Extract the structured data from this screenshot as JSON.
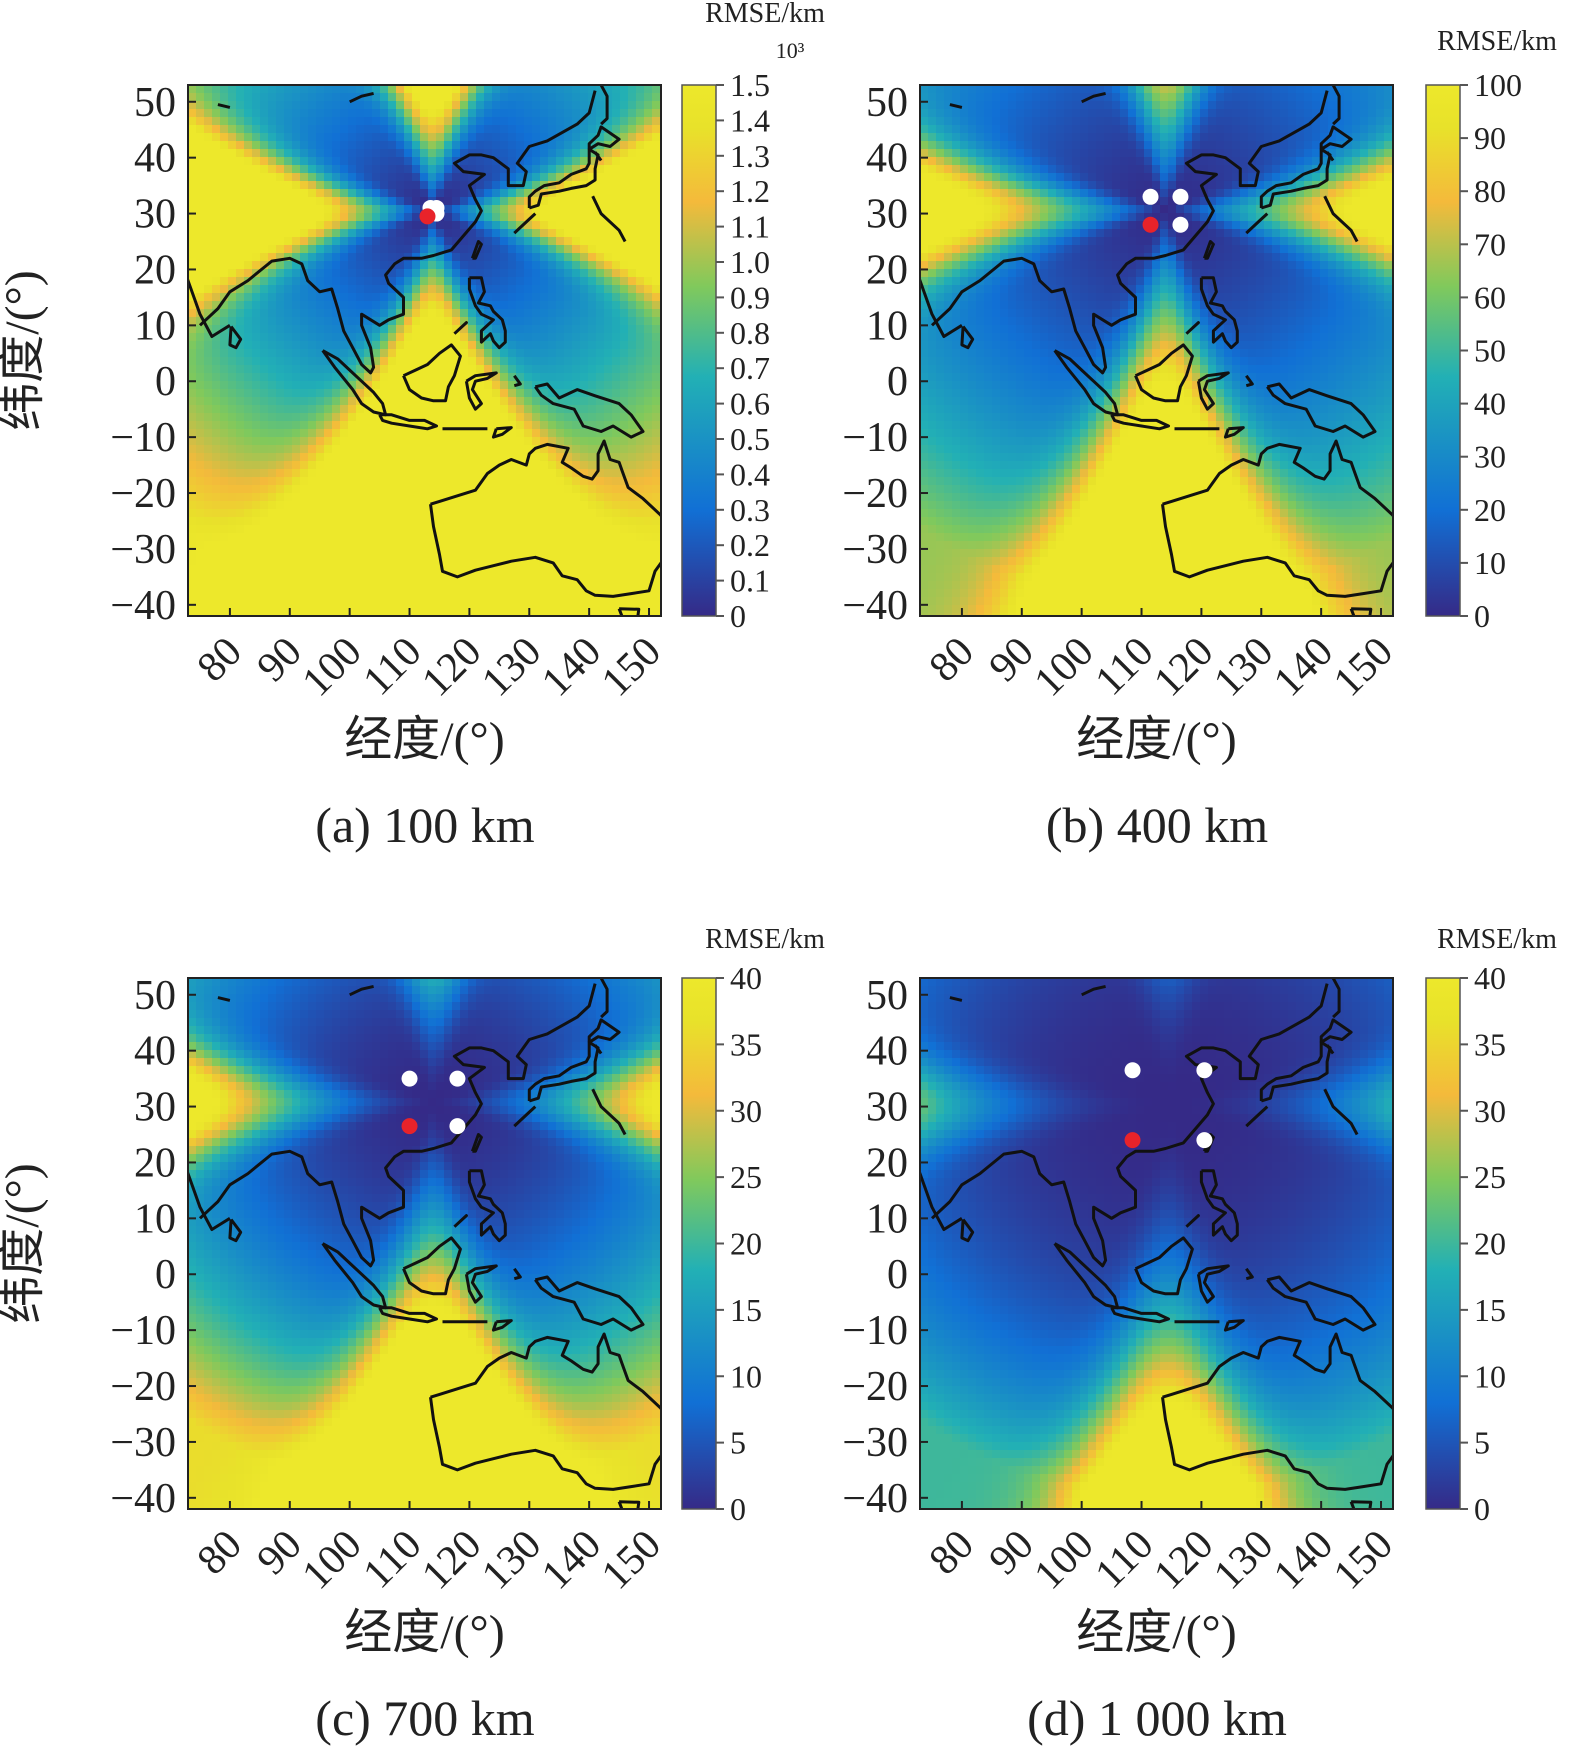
{
  "figure": {
    "colormap_colors": [
      "#352a87",
      "#1170d5",
      "#22b0b5",
      "#80c95c",
      "#f4ba3b",
      "#e8e22a",
      "#ede82b"
    ],
    "land_outline_color": "#111111",
    "marker_colors": {
      "white": "#ffffff",
      "red": "#e8232a"
    }
  },
  "chart_data": [
    {
      "type": "heatmap",
      "caption": "(a) 100 km",
      "xlabel": "经度/(°)",
      "ylabel": "纬度/(°)",
      "xlim": [
        73,
        152
      ],
      "ylim": [
        -42,
        53
      ],
      "xticks": [
        80,
        90,
        100,
        110,
        120,
        130,
        140,
        150
      ],
      "yticks": [
        50,
        40,
        30,
        20,
        10,
        0,
        -10,
        -20,
        -30,
        -40
      ],
      "colorbar": {
        "title": "RMSE/km",
        "exponent": "10³",
        "range": [
          0,
          1.5
        ],
        "ticks": [
          0,
          0.1,
          0.2,
          0.3,
          0.4,
          0.5,
          0.6,
          0.7,
          0.8,
          0.9,
          1.0,
          1.1,
          1.2,
          1.3,
          1.4,
          1.5
        ],
        "tick_labels": [
          "0",
          "0.1",
          "0.2",
          "0.3",
          "0.4",
          "0.5",
          "0.6",
          "0.7",
          "0.8",
          "0.9",
          "1.0",
          "1.1",
          "1.2",
          "1.3",
          "1.4",
          "1.5"
        ]
      },
      "stations": [
        {
          "lon": 113.5,
          "lat": 31,
          "color": "white"
        },
        {
          "lon": 114.5,
          "lat": 31,
          "color": "white"
        },
        {
          "lon": 114.5,
          "lat": 30,
          "color": "white"
        },
        {
          "lon": 113,
          "lat": 29.5,
          "color": "red"
        }
      ]
    },
    {
      "type": "heatmap",
      "caption": "(b) 400 km",
      "xlabel": "经度/(°)",
      "ylabel": "",
      "xlim": [
        73,
        152
      ],
      "ylim": [
        -42,
        53
      ],
      "xticks": [
        80,
        90,
        100,
        110,
        120,
        130,
        140,
        150
      ],
      "yticks": [
        50,
        40,
        30,
        20,
        10,
        0,
        -10,
        -20,
        -30,
        -40
      ],
      "colorbar": {
        "title": "RMSE/km",
        "exponent": "",
        "range": [
          0,
          100
        ],
        "ticks": [
          0,
          10,
          20,
          30,
          40,
          50,
          60,
          70,
          80,
          90,
          100
        ],
        "tick_labels": [
          "0",
          "10",
          "20",
          "30",
          "40",
          "50",
          "60",
          "70",
          "80",
          "90",
          "100"
        ]
      },
      "stations": [
        {
          "lon": 111.5,
          "lat": 33,
          "color": "white"
        },
        {
          "lon": 116.5,
          "lat": 33,
          "color": "white"
        },
        {
          "lon": 116.5,
          "lat": 28,
          "color": "white"
        },
        {
          "lon": 111.5,
          "lat": 28,
          "color": "red"
        }
      ]
    },
    {
      "type": "heatmap",
      "caption": "(c) 700 km",
      "xlabel": "经度/(°)",
      "ylabel": "纬度/(°)",
      "xlim": [
        73,
        152
      ],
      "ylim": [
        -42,
        53
      ],
      "xticks": [
        80,
        90,
        100,
        110,
        120,
        130,
        140,
        150
      ],
      "yticks": [
        50,
        40,
        30,
        20,
        10,
        0,
        -10,
        -20,
        -30,
        -40
      ],
      "colorbar": {
        "title": "RMSE/km",
        "exponent": "",
        "range": [
          0,
          40
        ],
        "ticks": [
          0,
          5,
          10,
          15,
          20,
          25,
          30,
          35,
          40
        ],
        "tick_labels": [
          "0",
          "5",
          "10",
          "15",
          "20",
          "25",
          "30",
          "35",
          "40"
        ]
      },
      "stations": [
        {
          "lon": 110,
          "lat": 35,
          "color": "white"
        },
        {
          "lon": 118,
          "lat": 35,
          "color": "white"
        },
        {
          "lon": 118,
          "lat": 26.5,
          "color": "white"
        },
        {
          "lon": 110,
          "lat": 26.5,
          "color": "red"
        }
      ]
    },
    {
      "type": "heatmap",
      "caption": "(d) 1 000 km",
      "xlabel": "经度/(°)",
      "ylabel": "",
      "xlim": [
        73,
        152
      ],
      "ylim": [
        -42,
        53
      ],
      "xticks": [
        80,
        90,
        100,
        110,
        120,
        130,
        140,
        150
      ],
      "yticks": [
        50,
        40,
        30,
        20,
        10,
        0,
        -10,
        -20,
        -30,
        -40
      ],
      "colorbar": {
        "title": "RMSE/km",
        "exponent": "",
        "range": [
          0,
          40
        ],
        "ticks": [
          0,
          5,
          10,
          15,
          20,
          25,
          30,
          35,
          40
        ],
        "tick_labels": [
          "0",
          "5",
          "10",
          "15",
          "20",
          "25",
          "30",
          "35",
          "40"
        ]
      },
      "stations": [
        {
          "lon": 108.5,
          "lat": 36.5,
          "color": "white"
        },
        {
          "lon": 120.5,
          "lat": 36.5,
          "color": "white"
        },
        {
          "lon": 120.5,
          "lat": 24,
          "color": "white"
        },
        {
          "lon": 108.5,
          "lat": 24,
          "color": "red"
        }
      ]
    }
  ]
}
